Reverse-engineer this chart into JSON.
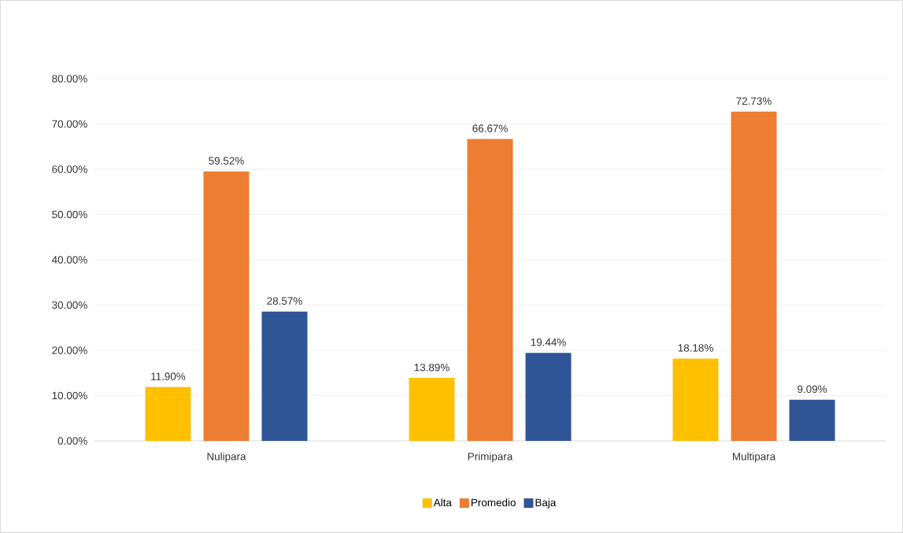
{
  "chart_data": {
    "type": "bar",
    "categories": [
      "Nulipara",
      "Primipara",
      "Multipara"
    ],
    "series": [
      {
        "name": "Alta",
        "color": "#ffc000",
        "values": [
          11.9,
          13.89,
          18.18
        ],
        "value_labels": [
          "11.90%",
          "13.89%",
          "18.18%"
        ]
      },
      {
        "name": "Promedio",
        "color": "#ed7d31",
        "values": [
          59.52,
          66.67,
          72.73
        ],
        "value_labels": [
          "59.52%",
          "66.67%",
          "72.73%"
        ]
      },
      {
        "name": "Baja",
        "color": "#2f5597",
        "values": [
          28.57,
          19.44,
          9.09
        ],
        "value_labels": [
          "28.57%",
          "19.44%",
          "9.09%"
        ]
      }
    ],
    "ylim": [
      0,
      80
    ],
    "yticks": [
      {
        "value": 0,
        "label": "0.00%"
      },
      {
        "value": 10,
        "label": "10.00%"
      },
      {
        "value": 20,
        "label": "20.00%"
      },
      {
        "value": 30,
        "label": "30.00%"
      },
      {
        "value": 40,
        "label": "40.00%"
      },
      {
        "value": 50,
        "label": "50.00%"
      },
      {
        "value": 60,
        "label": "60.00%"
      },
      {
        "value": 70,
        "label": "70.00%"
      },
      {
        "value": 80,
        "label": "80.00%"
      }
    ],
    "grid": "y",
    "legend": "bottom"
  }
}
